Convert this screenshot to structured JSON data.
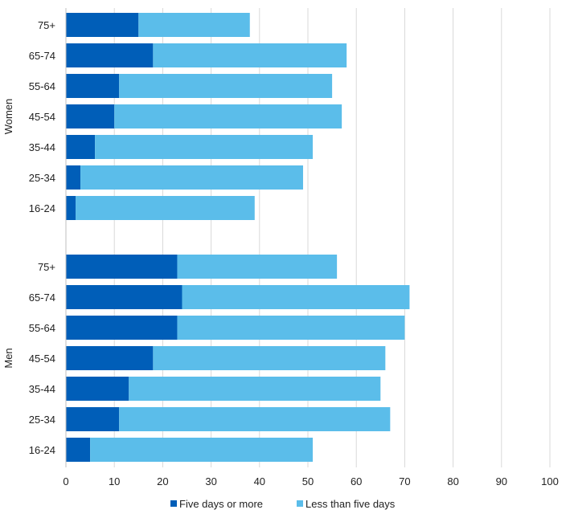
{
  "chart_data": {
    "type": "bar",
    "orientation": "horizontal",
    "stacked": true,
    "title": "",
    "xlabel": "",
    "ylabel": "",
    "xlim": [
      0,
      100
    ],
    "x_ticks": [
      0,
      10,
      20,
      30,
      40,
      50,
      60,
      70,
      80,
      90,
      100
    ],
    "grid": "vertical",
    "legend_position": "bottom",
    "series": [
      {
        "name": "Five days or more",
        "color": "#005EB8"
      },
      {
        "name": "Less than five days",
        "color": "#5BBDEA"
      }
    ],
    "groups": [
      {
        "label": "Women",
        "categories": [
          "75+",
          "65-74",
          "55-64",
          "45-54",
          "35-44",
          "25-34",
          "16-24"
        ],
        "five_days_or_more": [
          15,
          18,
          11,
          10,
          6,
          3,
          2
        ],
        "less_than_five_days": [
          23,
          40,
          44,
          47,
          45,
          46,
          37
        ]
      },
      {
        "label": "Men",
        "categories": [
          "75+",
          "65-74",
          "55-64",
          "45-54",
          "35-44",
          "25-34",
          "16-24"
        ],
        "five_days_or_more": [
          23,
          24,
          23,
          18,
          13,
          11,
          5
        ],
        "less_than_five_days": [
          33,
          47,
          47,
          48,
          52,
          56,
          46
        ]
      }
    ]
  }
}
